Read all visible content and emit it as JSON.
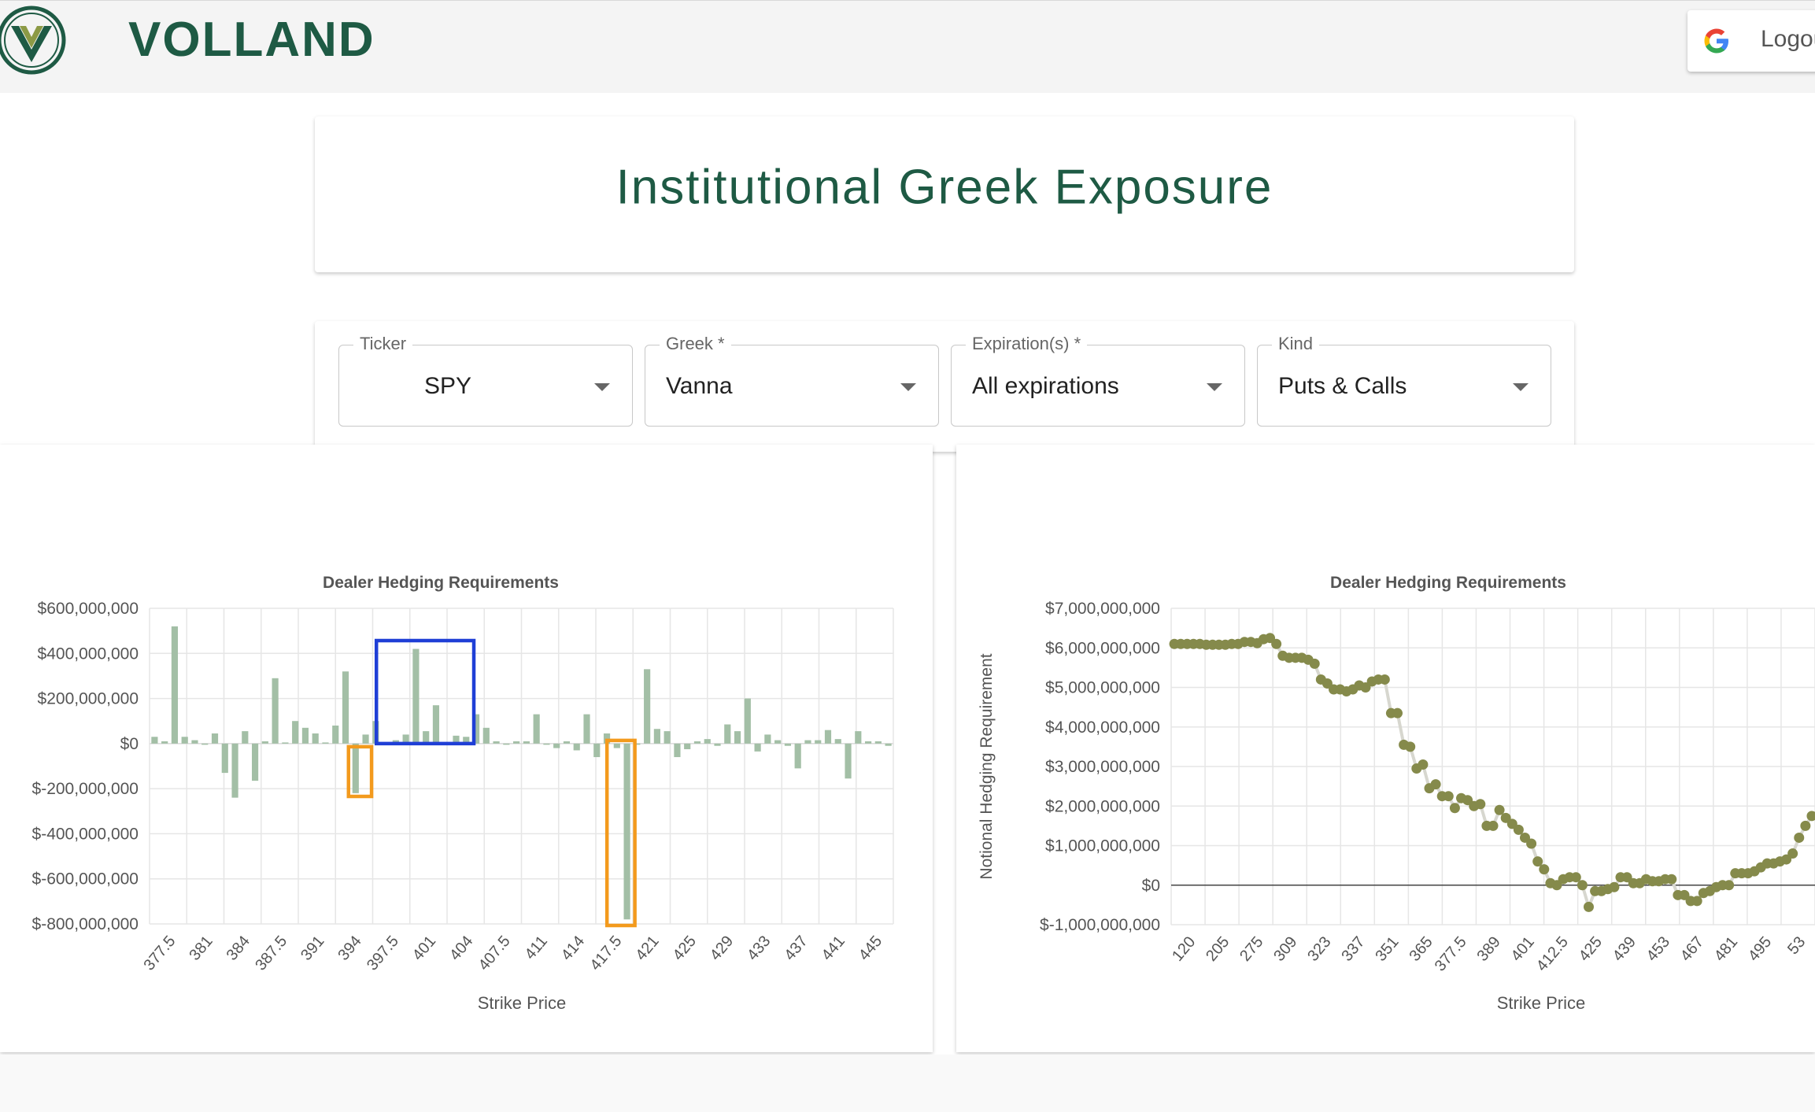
{
  "brand": {
    "name": "VOLLAND"
  },
  "auth": {
    "logout_label": "Logout"
  },
  "page": {
    "title": "Institutional Greek Exposure"
  },
  "filters": [
    {
      "label": "Ticker",
      "value": "SPY"
    },
    {
      "label": "Greek *",
      "value": "Vanna"
    },
    {
      "label": "Expiration(s) *",
      "value": "All expirations"
    },
    {
      "label": "Kind",
      "value": "Puts & Calls"
    }
  ],
  "colors": {
    "brand": "#1e5a44",
    "bar": "#a3bfa6",
    "scatter": "#858a4b",
    "highlight_blue": "#1f3fd6",
    "highlight_orange": "#f39a1d"
  },
  "chart_data": [
    {
      "type": "bar",
      "title": "Dealer Hedging Requirements",
      "xlabel": "Strike Price",
      "ylabel": "",
      "ylim": [
        -800000000,
        600000000
      ],
      "y_ticks": [
        "$600,000,000",
        "$400,000,000",
        "$200,000,000",
        "$0",
        "$-200,000,000",
        "$-400,000,000",
        "$-600,000,000",
        "$-800,000,000"
      ],
      "x_tick_labels": [
        "377.5",
        "381",
        "384",
        "387.5",
        "391",
        "394",
        "397.5",
        "401",
        "404",
        "407.5",
        "411",
        "414",
        "417.5",
        "421",
        "425",
        "429",
        "433",
        "437",
        "441",
        "445"
      ],
      "values": [
        30000000,
        10000000,
        520000000,
        30000000,
        15000000,
        0,
        45000000,
        -130000000,
        -240000000,
        55000000,
        -165000000,
        10000000,
        290000000,
        5000000,
        100000000,
        70000000,
        45000000,
        5000000,
        80000000,
        320000000,
        -220000000,
        40000000,
        100000000,
        0,
        15000000,
        40000000,
        420000000,
        55000000,
        170000000,
        5000000,
        35000000,
        30000000,
        130000000,
        70000000,
        10000000,
        0,
        10000000,
        10000000,
        130000000,
        -5000000,
        -20000000,
        10000000,
        -30000000,
        130000000,
        -60000000,
        45000000,
        -20000000,
        -780000000,
        0,
        330000000,
        65000000,
        55000000,
        -60000000,
        -25000000,
        10000000,
        20000000,
        -10000000,
        85000000,
        55000000,
        200000000,
        -35000000,
        40000000,
        15000000,
        -10000000,
        -110000000,
        15000000,
        15000000,
        60000000,
        20000000,
        -155000000,
        55000000,
        10000000,
        10000000,
        -10000000
      ],
      "highlight_regions": [
        {
          "color": "blue",
          "from": "397.5",
          "to": "404"
        },
        {
          "color": "orange",
          "from": "394",
          "to": "394"
        },
        {
          "color": "orange",
          "from": "417.5",
          "to": "417.5"
        }
      ]
    },
    {
      "type": "scatter",
      "title": "Dealer Hedging Requirements",
      "xlabel": "Strike Price",
      "ylabel": "Notional Hedging Requirement",
      "ylim": [
        -1000000000,
        7000000000
      ],
      "y_ticks": [
        "$7,000,000,000",
        "$6,000,000,000",
        "$5,000,000,000",
        "$4,000,000,000",
        "$3,000,000,000",
        "$2,000,000,000",
        "$1,000,000,000",
        "$0",
        "$-1,000,000,000"
      ],
      "x_tick_labels": [
        "120",
        "205",
        "275",
        "309",
        "323",
        "337",
        "351",
        "365",
        "377.5",
        "389",
        "401",
        "412.5",
        "425",
        "439",
        "453",
        "467",
        "481",
        "495",
        "53"
      ],
      "values": [
        6100000000,
        6100000000,
        6100000000,
        6100000000,
        6100000000,
        6080000000,
        6080000000,
        6080000000,
        6080000000,
        6100000000,
        6100000000,
        6150000000,
        6150000000,
        6120000000,
        6220000000,
        6250000000,
        6100000000,
        5800000000,
        5750000000,
        5750000000,
        5750000000,
        5700000000,
        5600000000,
        5200000000,
        5100000000,
        4950000000,
        4950000000,
        4900000000,
        4950000000,
        5050000000,
        5000000000,
        5150000000,
        5200000000,
        5200000000,
        4350000000,
        4350000000,
        3550000000,
        3500000000,
        2950000000,
        3050000000,
        2450000000,
        2550000000,
        2250000000,
        2250000000,
        1950000000,
        2200000000,
        2150000000,
        2000000000,
        2050000000,
        1500000000,
        1500000000,
        1900000000,
        1700000000,
        1550000000,
        1400000000,
        1200000000,
        1050000000,
        600000000,
        400000000,
        50000000,
        0,
        150000000,
        200000000,
        200000000,
        0,
        -550000000,
        -150000000,
        -150000000,
        -100000000,
        -50000000,
        200000000,
        200000000,
        50000000,
        50000000,
        150000000,
        100000000,
        100000000,
        150000000,
        150000000,
        -250000000,
        -250000000,
        -400000000,
        -400000000,
        -200000000,
        -150000000,
        -50000000,
        0,
        0,
        300000000,
        300000000,
        300000000,
        350000000,
        450000000,
        550000000,
        550000000,
        600000000,
        650000000,
        800000000,
        1200000000,
        1500000000,
        1750000000
      ]
    }
  ]
}
